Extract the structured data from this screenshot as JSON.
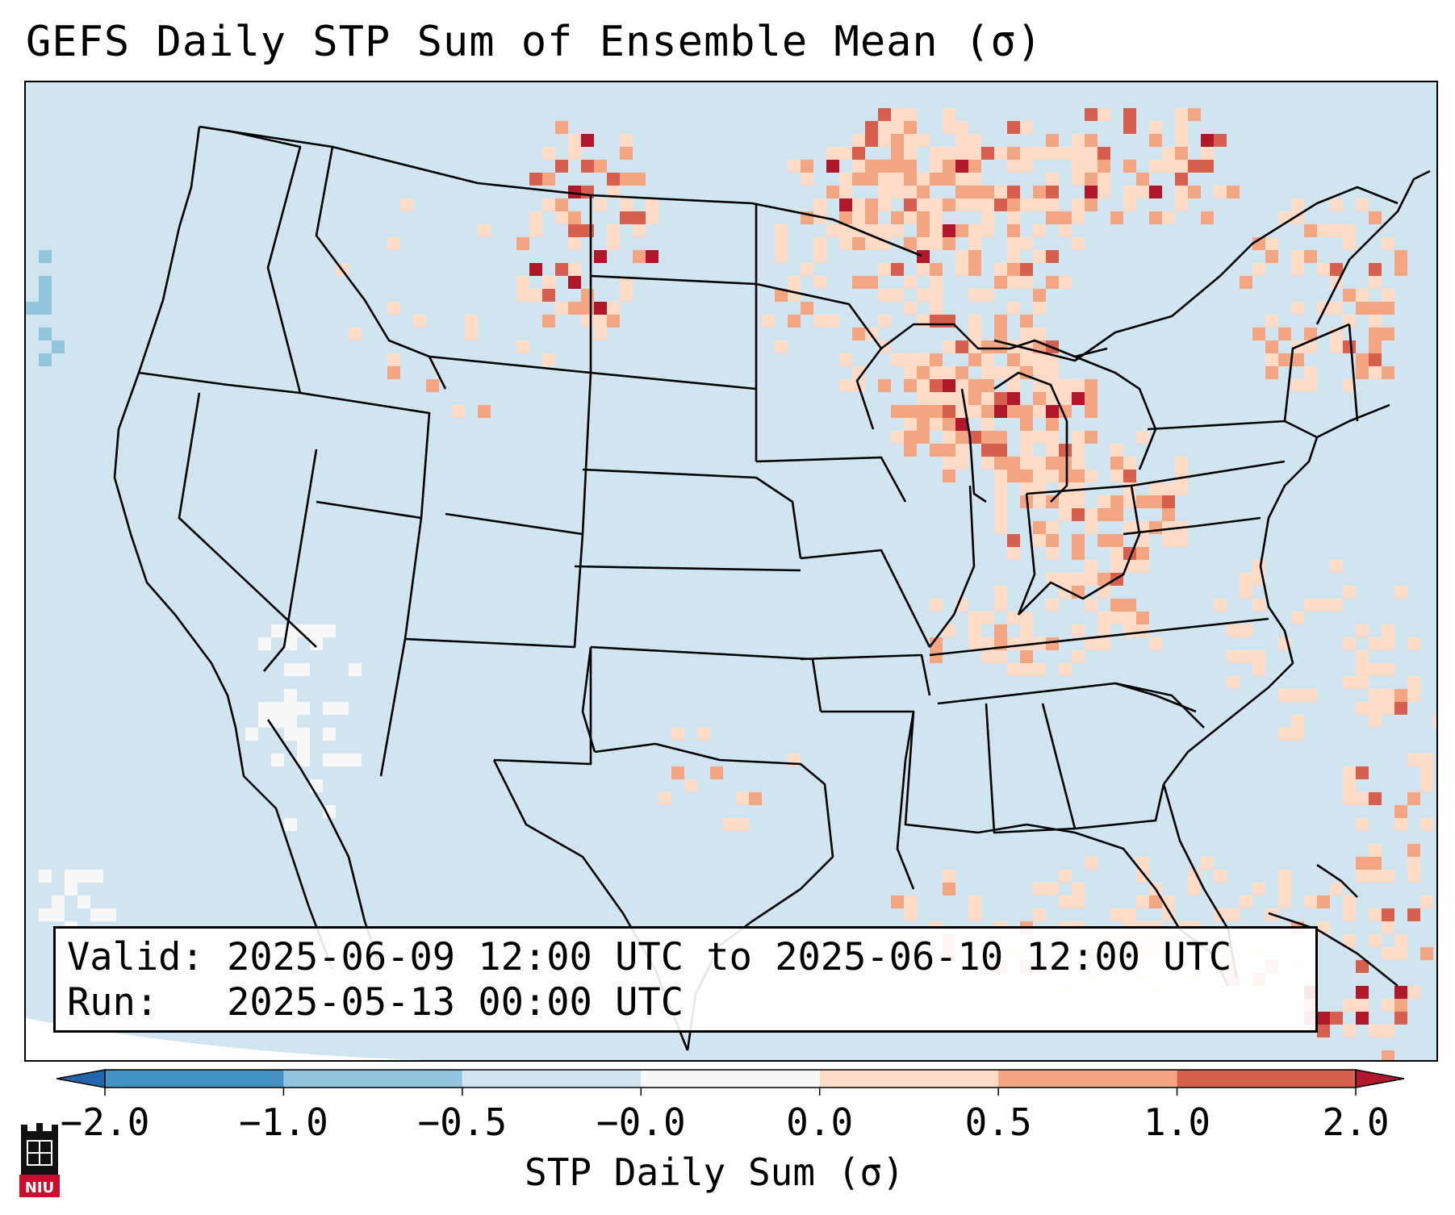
{
  "title": "GEFS Daily STP Sum of Ensemble Mean (σ)",
  "info": {
    "valid_line": "Valid: 2025-06-09 12:00 UTC to 2025-06-10 12:00 UTC",
    "run_line": "Run:   2025-05-13 00:00 UTC"
  },
  "colorbar": {
    "label": "STP Daily Sum (σ)",
    "ticks": [
      "−2.0",
      "−1.0",
      "−0.5",
      "−0.0",
      "0.0",
      "0.5",
      "1.0",
      "2.0"
    ],
    "bin_colors": [
      "#4393c3",
      "#92c5de",
      "#d1e5f0",
      "#f7f7f7",
      "#fddbc7",
      "#f4a582",
      "#d6604d"
    ],
    "under_color": "#2166ac",
    "over_color": "#b2182b"
  },
  "logo": {
    "text": "NIU",
    "icon": "niu-castle-logo"
  },
  "colors": {
    "background_field": "#d1e5f0",
    "no_data": "#ffffff",
    "boundaries": "#000000"
  }
}
